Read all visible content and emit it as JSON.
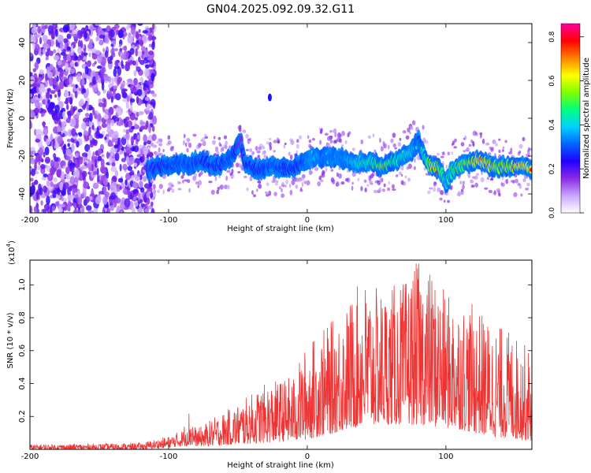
{
  "figure": {
    "title": "GN04.2025.092.09.32.G11"
  },
  "chart_data": [
    {
      "type": "heatmap",
      "title": "GN04.2025.092.09.32.G11",
      "xlabel": "Height of straight line (km)",
      "ylabel": "Frequency (Hz)",
      "xlim": [
        -200,
        162
      ],
      "ylim": [
        -50,
        50
      ],
      "x_ticks": [
        -200,
        -100,
        0,
        100
      ],
      "y_ticks": [
        -40,
        -20,
        0,
        20,
        40
      ],
      "colorbar": {
        "label": "Normalized spectral amplitude",
        "range": [
          0,
          0.86
        ],
        "ticks": [
          0.0,
          0.2,
          0.4,
          0.6,
          0.8
        ],
        "colormap": [
          "#ffffff",
          "#c9a6ff",
          "#8a2be2",
          "#2200ff",
          "#0066ff",
          "#00d0ff",
          "#00ff80",
          "#80ff00",
          "#ffff00",
          "#ff8000",
          "#ff0000",
          "#ff00a0"
        ]
      },
      "noise_region": {
        "x_range": [
          -200,
          -115
        ],
        "level": 0.2
      },
      "ridge_trace": {
        "x": [
          -115,
          -105,
          -95,
          -85,
          -75,
          -65,
          -55,
          -48,
          -45,
          -35,
          -25,
          -15,
          -5,
          0,
          5,
          15,
          25,
          35,
          45,
          55,
          65,
          75,
          80,
          85,
          90,
          95,
          100,
          105,
          115,
          125,
          135,
          145,
          155,
          162
        ],
        "y": [
          -28,
          -25,
          -24,
          -24,
          -23,
          -25,
          -21,
          -12,
          -24,
          -27,
          -25,
          -27,
          -24,
          -22,
          -20,
          -21,
          -21,
          -24,
          -23,
          -25,
          -22,
          -18,
          -12,
          -22,
          -26,
          -26,
          -35,
          -27,
          -24,
          -22,
          -26,
          -25,
          -26,
          -26
        ],
        "level": [
          0.25,
          0.3,
          0.35,
          0.35,
          0.3,
          0.3,
          0.35,
          0.2,
          0.3,
          0.3,
          0.35,
          0.3,
          0.3,
          0.4,
          0.45,
          0.4,
          0.4,
          0.5,
          0.55,
          0.65,
          0.55,
          0.5,
          0.35,
          0.55,
          0.75,
          0.7,
          0.5,
          0.6,
          0.65,
          0.8,
          0.7,
          0.7,
          0.8,
          0.75
        ]
      },
      "spot": {
        "x": -27,
        "y": 11,
        "level": 0.25
      }
    },
    {
      "type": "line",
      "xlabel": "Height of straight line (km)",
      "ylabel": "SNR (10 * v/v)",
      "y_multiplier": "(x10",
      "y_multiplier_exp": "4",
      "xlim": [
        -200,
        162
      ],
      "ylim": [
        0,
        1.15
      ],
      "x_ticks": [
        -200,
        -100,
        0,
        100
      ],
      "y_ticks": [
        0.2,
        0.4,
        0.6,
        0.8,
        1.0
      ],
      "color": "#ee3333",
      "envelope": {
        "x": [
          -200,
          -150,
          -120,
          -100,
          -90,
          -85,
          -80,
          -70,
          -50,
          -30,
          -10,
          0,
          10,
          20,
          30,
          40,
          50,
          60,
          70,
          80,
          90,
          100,
          110,
          120,
          130,
          140,
          150,
          162
        ],
        "max": [
          0.03,
          0.035,
          0.04,
          0.08,
          0.12,
          0.25,
          0.12,
          0.18,
          0.28,
          0.4,
          0.45,
          0.65,
          0.72,
          0.8,
          0.9,
          1.05,
          0.98,
          1.0,
          1.02,
          1.15,
          1.08,
          0.95,
          0.92,
          0.88,
          0.8,
          0.75,
          0.7,
          0.6
        ],
        "min": [
          0.0,
          0.0,
          0.0,
          0.01,
          0.02,
          0.02,
          0.02,
          0.02,
          0.03,
          0.04,
          0.05,
          0.06,
          0.08,
          0.1,
          0.12,
          0.14,
          0.15,
          0.15,
          0.15,
          0.15,
          0.14,
          0.13,
          0.12,
          0.1,
          0.08,
          0.07,
          0.06,
          0.05
        ]
      }
    }
  ]
}
